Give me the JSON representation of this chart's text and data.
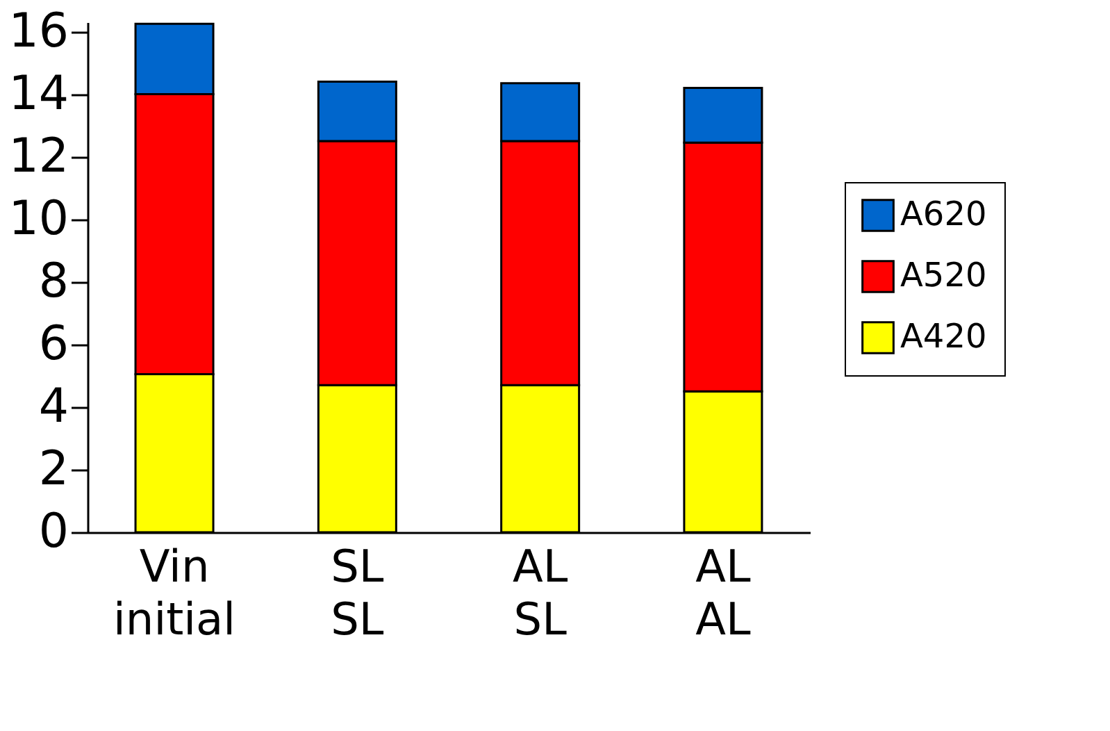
{
  "chart_data": {
    "type": "bar",
    "stacked": true,
    "categories": [
      "Vin initial",
      "SL SL",
      "AL SL",
      "AL AL"
    ],
    "series": [
      {
        "name": "A420",
        "color": "#ffff00",
        "values": [
          5.05,
          4.7,
          4.7,
          4.5
        ]
      },
      {
        "name": "A520",
        "color": "#ff0000",
        "values": [
          8.95,
          7.8,
          7.8,
          7.95
        ]
      },
      {
        "name": "A620",
        "color": "#0066cc",
        "values": [
          2.25,
          1.9,
          1.85,
          1.75
        ]
      }
    ],
    "ylim": [
      0,
      16.3
    ],
    "yticks": [
      0,
      2,
      4,
      6,
      8,
      10,
      12,
      14,
      16
    ],
    "grid": false,
    "legend": "right"
  }
}
